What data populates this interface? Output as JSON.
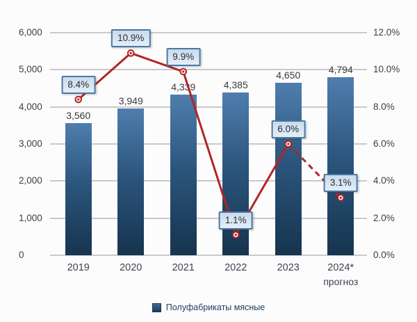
{
  "chart_data": {
    "type": "bar",
    "combo_with_line": true,
    "categories": [
      "2019",
      "2020",
      "2021",
      "2022",
      "2023",
      "2024*"
    ],
    "category_sub_labels": [
      "",
      "",
      "",
      "",
      "",
      "прогноз"
    ],
    "bar_series": {
      "name": "Полуфабрикаты мясные",
      "values": [
        3560,
        3949,
        4339,
        4385,
        4650,
        4794
      ],
      "labels": [
        "3,560",
        "3,949",
        "4,339",
        "4,385",
        "4,650",
        "4,794"
      ]
    },
    "line_series": {
      "values": [
        8.4,
        10.9,
        9.9,
        1.1,
        6.0,
        3.1
      ],
      "labels": [
        "8.4%",
        "10.9%",
        "9.9%",
        "1.1%",
        "6.0%",
        "3.1%"
      ],
      "dashed_from_index": 4
    },
    "left_axis": {
      "min": 0,
      "max": 6000,
      "tick_labels": [
        "6,000",
        "5,000",
        "4,000",
        "3,000",
        "2,000",
        "1,000",
        "0"
      ]
    },
    "right_axis": {
      "min": 0,
      "max": 12,
      "tick_labels": [
        "12.0%",
        "10.0%",
        "8.0%",
        "6.0%",
        "4.0%",
        "2.0%",
        "0.0%"
      ]
    },
    "legend": {
      "label": "Полуфабрикаты мясные"
    },
    "grid": true,
    "legend_position": "bottom-center",
    "colors": {
      "bar_top": "#4f7ead",
      "bar_bottom": "#16344e",
      "line": "#b22427",
      "label_box_border": "#4a77a3",
      "label_box_fill": "#d6e4f2",
      "gridline": "#c9c9c9",
      "axis_text": "#3e3e3e"
    }
  }
}
